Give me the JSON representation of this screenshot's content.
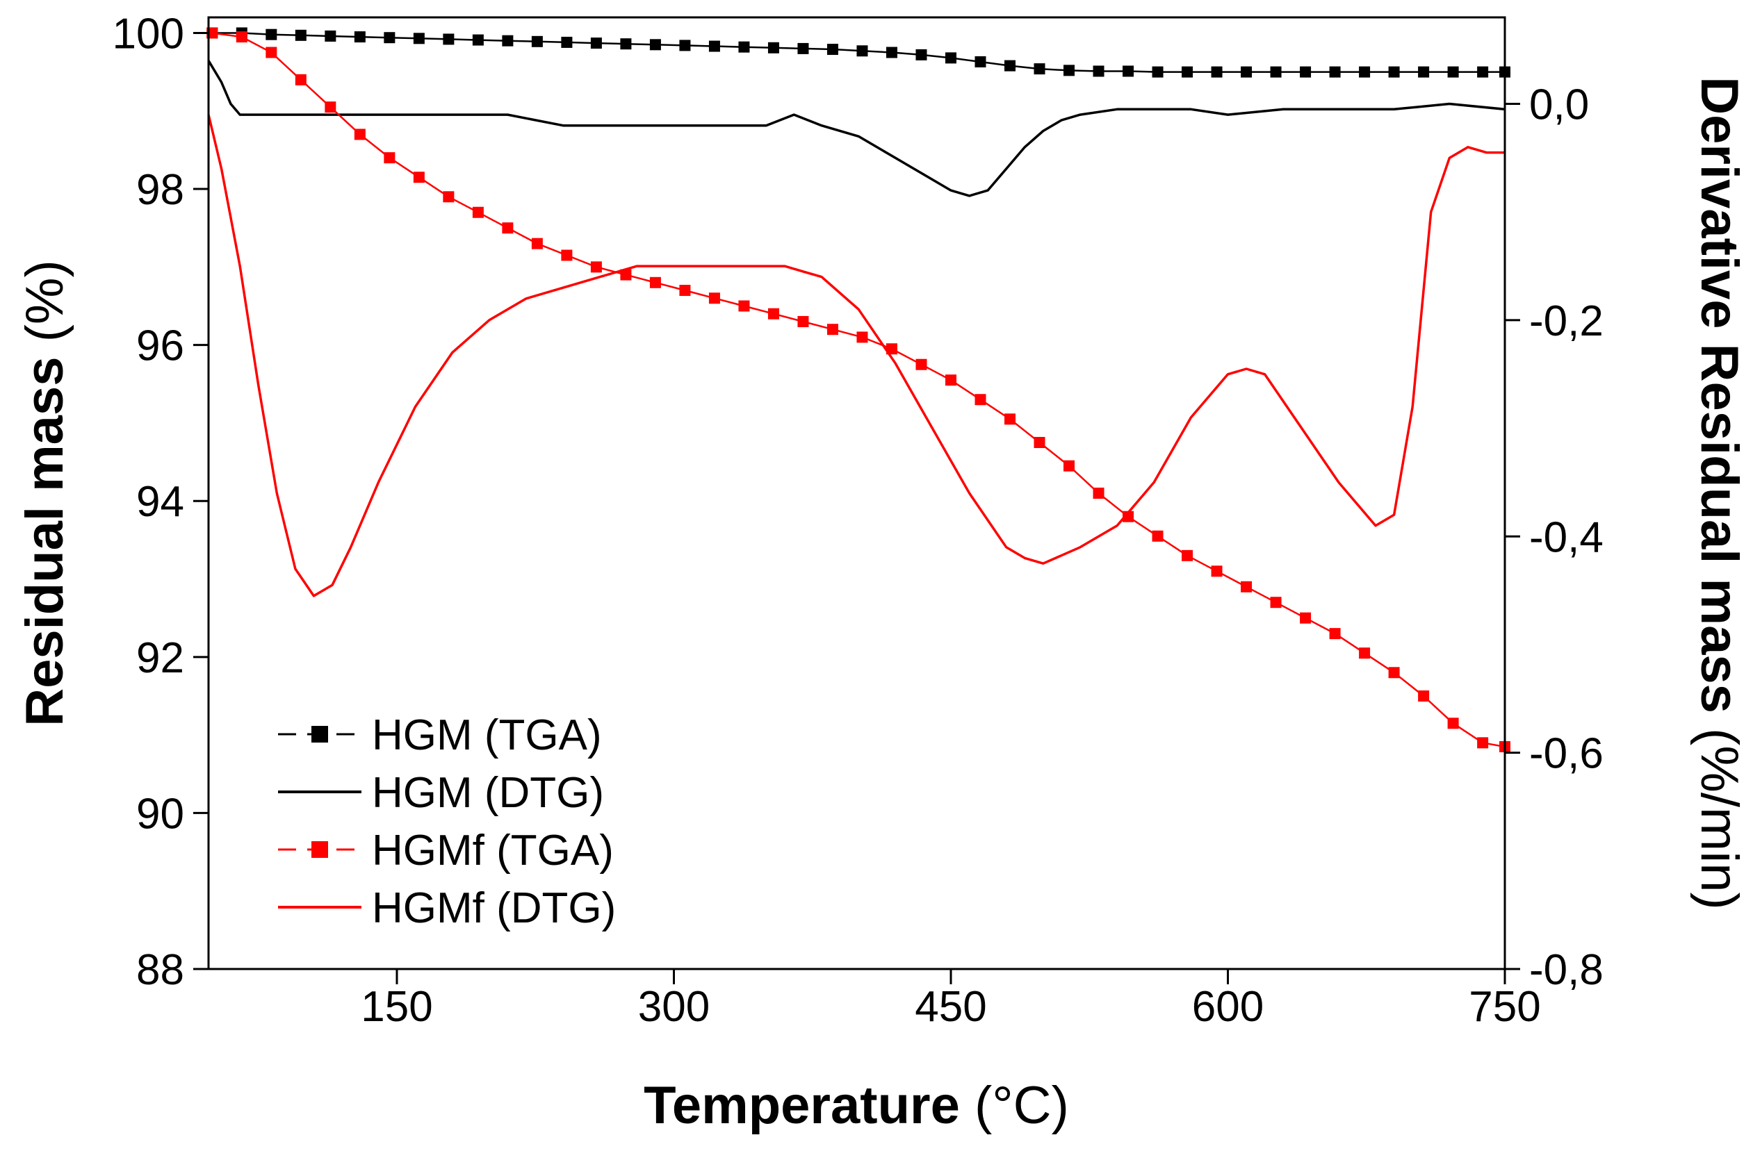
{
  "chart_data": {
    "type": "line",
    "title": "",
    "xlabel": {
      "main": "Temperature",
      "unit": "(°C)"
    },
    "ylabel_left": {
      "main": "Residual mass",
      "unit": "(%)"
    },
    "ylabel_right": {
      "main": "Derivative Residual mass",
      "unit": "(%/min)"
    },
    "xlim": [
      48,
      750
    ],
    "ylim_left": [
      88,
      100.2
    ],
    "ylim_right": [
      -0.8,
      0.08
    ],
    "x_ticks": [
      150,
      300,
      450,
      600,
      750
    ],
    "x_tick_labels": [
      "150",
      "300",
      "450",
      "600",
      "750"
    ],
    "y_left_ticks": [
      88,
      90,
      92,
      94,
      96,
      98,
      100
    ],
    "y_left_tick_labels": [
      "88",
      "90",
      "92",
      "94",
      "96",
      "98",
      "100"
    ],
    "y_right_ticks": [
      0,
      -0.2,
      -0.4,
      -0.6,
      -0.8
    ],
    "y_right_tick_labels": [
      "0,0",
      "-0,2",
      "-0,4",
      "-0,6",
      "-0,8"
    ],
    "legend_position": "bottom-left",
    "series": [
      {
        "name": "HGM (TGA)",
        "axis": "left",
        "color": "#000000",
        "marker": "square",
        "x": [
          50,
          66,
          82,
          98,
          114,
          130,
          146,
          162,
          178,
          194,
          210,
          226,
          242,
          258,
          274,
          290,
          306,
          322,
          338,
          354,
          370,
          386,
          402,
          418,
          434,
          450,
          466,
          482,
          498,
          514,
          530,
          546,
          562,
          578,
          594,
          610,
          626,
          642,
          658,
          674,
          690,
          706,
          722,
          738,
          750
        ],
        "y": [
          100.0,
          100.0,
          99.98,
          99.97,
          99.96,
          99.95,
          99.94,
          99.93,
          99.92,
          99.91,
          99.9,
          99.89,
          99.88,
          99.87,
          99.86,
          99.85,
          99.84,
          99.83,
          99.82,
          99.81,
          99.8,
          99.79,
          99.77,
          99.75,
          99.72,
          99.68,
          99.63,
          99.58,
          99.54,
          99.52,
          99.51,
          99.51,
          99.5,
          99.5,
          99.5,
          99.5,
          99.5,
          99.5,
          99.5,
          99.5,
          99.5,
          99.5,
          99.5,
          99.5,
          99.5
        ]
      },
      {
        "name": "HGM (DTG)",
        "axis": "right",
        "color": "#000000",
        "marker": "none",
        "x": [
          48,
          55,
          60,
          65,
          70,
          80,
          100,
          120,
          150,
          180,
          210,
          240,
          270,
          300,
          330,
          350,
          365,
          380,
          400,
          420,
          440,
          450,
          460,
          470,
          480,
          490,
          500,
          510,
          520,
          540,
          560,
          580,
          600,
          630,
          660,
          690,
          720,
          750
        ],
        "y": [
          0.04,
          0.02,
          0.0,
          -0.01,
          -0.01,
          -0.01,
          -0.01,
          -0.01,
          -0.01,
          -0.01,
          -0.01,
          -0.02,
          -0.02,
          -0.02,
          -0.02,
          -0.02,
          -0.01,
          -0.02,
          -0.03,
          -0.05,
          -0.07,
          -0.08,
          -0.085,
          -0.08,
          -0.06,
          -0.04,
          -0.025,
          -0.015,
          -0.01,
          -0.005,
          -0.005,
          -0.005,
          -0.01,
          -0.005,
          -0.005,
          -0.005,
          0.0,
          -0.005
        ]
      },
      {
        "name": "HGMf (TGA)",
        "axis": "left",
        "color": "#ff0000",
        "marker": "square",
        "x": [
          50,
          66,
          82,
          98,
          114,
          130,
          146,
          162,
          178,
          194,
          210,
          226,
          242,
          258,
          274,
          290,
          306,
          322,
          338,
          354,
          370,
          386,
          402,
          418,
          434,
          450,
          466,
          482,
          498,
          514,
          530,
          546,
          562,
          578,
          594,
          610,
          626,
          642,
          658,
          674,
          690,
          706,
          722,
          738,
          750
        ],
        "y": [
          100.0,
          99.95,
          99.75,
          99.4,
          99.05,
          98.7,
          98.4,
          98.15,
          97.9,
          97.7,
          97.5,
          97.3,
          97.15,
          97.0,
          96.9,
          96.8,
          96.7,
          96.6,
          96.5,
          96.4,
          96.3,
          96.2,
          96.1,
          95.95,
          95.75,
          95.55,
          95.3,
          95.05,
          94.75,
          94.45,
          94.1,
          93.8,
          93.55,
          93.3,
          93.1,
          92.9,
          92.7,
          92.5,
          92.3,
          92.05,
          91.8,
          91.5,
          91.15,
          90.9,
          90.85
        ]
      },
      {
        "name": "HGMf (DTG)",
        "axis": "right",
        "color": "#ff0000",
        "marker": "none",
        "x": [
          48,
          55,
          65,
          75,
          85,
          95,
          105,
          115,
          125,
          140,
          160,
          180,
          200,
          220,
          240,
          260,
          280,
          300,
          320,
          340,
          360,
          370,
          380,
          400,
          420,
          440,
          460,
          480,
          490,
          500,
          520,
          540,
          560,
          580,
          600,
          610,
          620,
          640,
          660,
          670,
          680,
          690,
          700,
          710,
          720,
          730,
          740,
          750
        ],
        "y": [
          -0.01,
          -0.06,
          -0.15,
          -0.26,
          -0.36,
          -0.43,
          -0.455,
          -0.445,
          -0.41,
          -0.35,
          -0.28,
          -0.23,
          -0.2,
          -0.18,
          -0.17,
          -0.16,
          -0.15,
          -0.15,
          -0.15,
          -0.15,
          -0.15,
          -0.155,
          -0.16,
          -0.19,
          -0.24,
          -0.3,
          -0.36,
          -0.41,
          -0.42,
          -0.425,
          -0.41,
          -0.39,
          -0.35,
          -0.29,
          -0.25,
          -0.245,
          -0.25,
          -0.3,
          -0.35,
          -0.37,
          -0.39,
          -0.38,
          -0.28,
          -0.1,
          -0.05,
          -0.04,
          -0.045,
          -0.045
        ]
      }
    ]
  }
}
